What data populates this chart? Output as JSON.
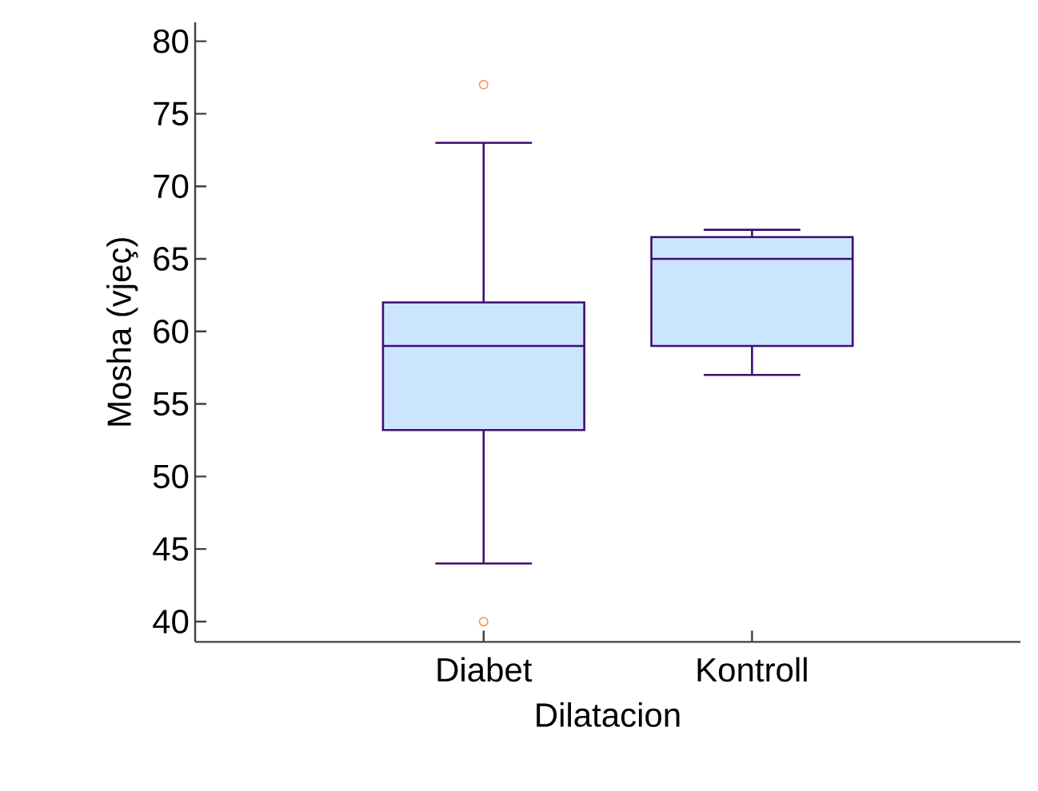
{
  "chart_data": {
    "type": "box",
    "xlabel": "Dilatacion",
    "ylabel": "Mosha (vjeç)",
    "categories": [
      "Diabet",
      "Kontroll"
    ],
    "color": "#cce5ff",
    "boxes": [
      {
        "low": 44,
        "q1": 53.2,
        "median": 59,
        "q3": 62,
        "high": 73,
        "outliers": [
          77,
          40
        ]
      },
      {
        "low": 57,
        "q1": 59,
        "median": 65,
        "q3": 66.5,
        "high": 67
      }
    ],
    "ylim": [
      38.6,
      81.3
    ],
    "yticks": [
      40,
      45,
      50,
      55,
      60,
      65,
      70,
      75,
      80
    ]
  }
}
